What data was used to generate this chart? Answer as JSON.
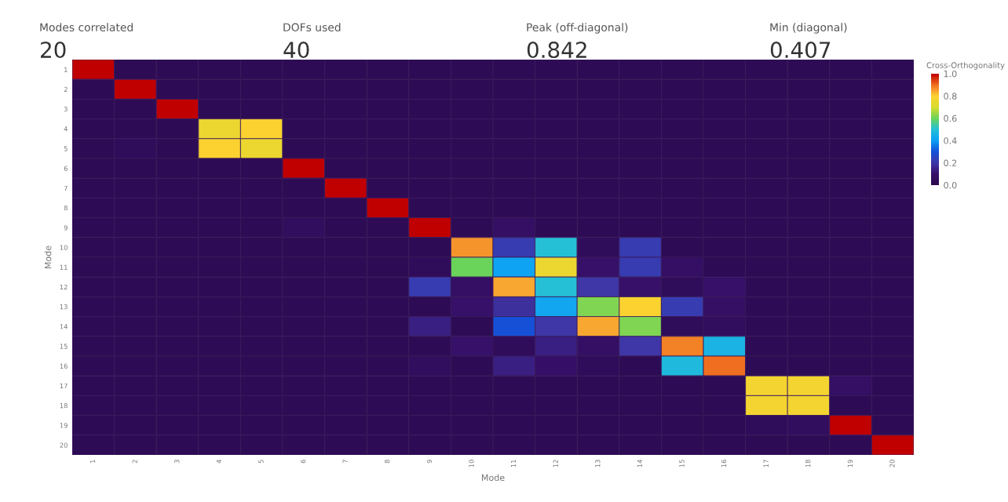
{
  "chart_data": [
    {
      "type": "other",
      "annotations": [
        "Modes correlated",
        "20",
        "DOFs used",
        "40",
        "Peak (off-diagonal)",
        "0.842",
        "Min (diagonal)",
        "0.407"
      ]
    },
    {
      "type": "heatmap",
      "xlabel": "Mode",
      "ylabel": "Mode",
      "clabel": "Cross-Orthogonality",
      "categories": [
        "1",
        "2",
        "3",
        "4",
        "5",
        "6",
        "7",
        "8",
        "9",
        "10",
        "11",
        "12",
        "13",
        "14",
        "15",
        "16",
        "17",
        "18",
        "19",
        "20"
      ],
      "y_categories": [
        "1",
        "2",
        "3",
        "4",
        "5",
        "6",
        "7",
        "8",
        "9",
        "10",
        "11",
        "12",
        "13",
        "14",
        "15",
        "16",
        "17",
        "18",
        "19",
        "20"
      ],
      "cells": [
        [
          1.0,
          0.03,
          0.03,
          0.03,
          0.03,
          0.03,
          0.03,
          0.03,
          0.03,
          0.03,
          0.03,
          0.03,
          0.03,
          0.03,
          0.03,
          0.03,
          0.03,
          0.03,
          0.03,
          0.03
        ],
        [
          0.03,
          1.0,
          0.03,
          0.03,
          0.03,
          0.03,
          0.03,
          0.03,
          0.03,
          0.03,
          0.03,
          0.03,
          0.03,
          0.03,
          0.03,
          0.03,
          0.03,
          0.03,
          0.03,
          0.03
        ],
        [
          0.03,
          0.03,
          1.0,
          0.03,
          0.03,
          0.03,
          0.03,
          0.03,
          0.03,
          0.03,
          0.03,
          0.03,
          0.03,
          0.03,
          0.03,
          0.03,
          0.03,
          0.03,
          0.03,
          0.03
        ],
        [
          0.03,
          0.03,
          0.03,
          0.75,
          0.8,
          0.03,
          0.03,
          0.03,
          0.03,
          0.03,
          0.03,
          0.03,
          0.03,
          0.03,
          0.03,
          0.03,
          0.03,
          0.03,
          0.03,
          0.03
        ],
        [
          0.03,
          0.05,
          0.03,
          0.8,
          0.75,
          0.03,
          0.03,
          0.03,
          0.03,
          0.03,
          0.03,
          0.03,
          0.03,
          0.03,
          0.03,
          0.03,
          0.03,
          0.03,
          0.03,
          0.03
        ],
        [
          0.03,
          0.03,
          0.03,
          0.03,
          0.03,
          1.0,
          0.03,
          0.03,
          0.03,
          0.03,
          0.03,
          0.03,
          0.03,
          0.03,
          0.03,
          0.03,
          0.03,
          0.03,
          0.03,
          0.03
        ],
        [
          0.03,
          0.03,
          0.03,
          0.03,
          0.03,
          0.03,
          1.0,
          0.03,
          0.03,
          0.03,
          0.03,
          0.03,
          0.03,
          0.03,
          0.03,
          0.03,
          0.03,
          0.03,
          0.03,
          0.03
        ],
        [
          0.03,
          0.03,
          0.03,
          0.03,
          0.03,
          0.03,
          0.03,
          1.0,
          0.03,
          0.03,
          0.03,
          0.03,
          0.03,
          0.03,
          0.03,
          0.03,
          0.03,
          0.03,
          0.03,
          0.03
        ],
        [
          0.03,
          0.03,
          0.03,
          0.03,
          0.03,
          0.06,
          0.03,
          0.03,
          1.0,
          0.03,
          0.08,
          0.03,
          0.03,
          0.03,
          0.03,
          0.03,
          0.03,
          0.03,
          0.03,
          0.03
        ],
        [
          0.03,
          0.03,
          0.03,
          0.03,
          0.03,
          0.03,
          0.03,
          0.03,
          0.03,
          0.86,
          0.22,
          0.5,
          0.05,
          0.22,
          0.03,
          0.03,
          0.03,
          0.03,
          0.03,
          0.03
        ],
        [
          0.03,
          0.03,
          0.03,
          0.03,
          0.03,
          0.03,
          0.03,
          0.03,
          0.05,
          0.6,
          0.407,
          0.75,
          0.1,
          0.22,
          0.08,
          0.03,
          0.03,
          0.03,
          0.03,
          0.03
        ],
        [
          0.03,
          0.03,
          0.03,
          0.03,
          0.03,
          0.03,
          0.03,
          0.03,
          0.22,
          0.08,
          0.842,
          0.5,
          0.2,
          0.1,
          0.05,
          0.1,
          0.03,
          0.03,
          0.03,
          0.03
        ],
        [
          0.03,
          0.03,
          0.03,
          0.03,
          0.03,
          0.03,
          0.03,
          0.03,
          0.03,
          0.1,
          0.18,
          0.42,
          0.62,
          0.8,
          0.22,
          0.08,
          0.03,
          0.03,
          0.03,
          0.03
        ],
        [
          0.03,
          0.03,
          0.03,
          0.03,
          0.03,
          0.03,
          0.03,
          0.03,
          0.14,
          0.03,
          0.3,
          0.2,
          0.84,
          0.62,
          0.05,
          0.06,
          0.03,
          0.03,
          0.03,
          0.03
        ],
        [
          0.03,
          0.03,
          0.03,
          0.03,
          0.03,
          0.03,
          0.03,
          0.03,
          0.03,
          0.1,
          0.05,
          0.14,
          0.08,
          0.2,
          0.88,
          0.46,
          0.03,
          0.03,
          0.03,
          0.03
        ],
        [
          0.03,
          0.03,
          0.03,
          0.03,
          0.03,
          0.03,
          0.03,
          0.03,
          0.06,
          0.03,
          0.14,
          0.09,
          0.05,
          0.03,
          0.48,
          0.9,
          0.03,
          0.03,
          0.03,
          0.03
        ],
        [
          0.03,
          0.03,
          0.03,
          0.03,
          0.03,
          0.03,
          0.03,
          0.03,
          0.03,
          0.03,
          0.03,
          0.03,
          0.03,
          0.03,
          0.03,
          0.03,
          0.78,
          0.78,
          0.08,
          0.03
        ],
        [
          0.03,
          0.03,
          0.03,
          0.03,
          0.03,
          0.03,
          0.03,
          0.03,
          0.03,
          0.03,
          0.03,
          0.03,
          0.03,
          0.03,
          0.03,
          0.03,
          0.78,
          0.78,
          0.03,
          0.03
        ],
        [
          0.03,
          0.03,
          0.03,
          0.03,
          0.03,
          0.03,
          0.03,
          0.03,
          0.03,
          0.03,
          0.03,
          0.03,
          0.03,
          0.03,
          0.03,
          0.03,
          0.05,
          0.06,
          1.0,
          0.03
        ],
        [
          0.03,
          0.03,
          0.03,
          0.03,
          0.03,
          0.03,
          0.03,
          0.03,
          0.03,
          0.03,
          0.03,
          0.03,
          0.03,
          0.03,
          0.03,
          0.03,
          0.03,
          0.03,
          0.03,
          1.0
        ]
      ],
      "clim": [
        0,
        1
      ],
      "cticks": [
        {
          "value": 0,
          "label": "0.0"
        },
        {
          "value": 0.2,
          "label": "0.2"
        },
        {
          "value": 0.4,
          "label": "0.4"
        },
        {
          "value": 0.6,
          "label": "0.6"
        },
        {
          "value": 0.8,
          "label": "0.8"
        },
        {
          "value": 1,
          "label": "1.0"
        }
      ]
    }
  ]
}
